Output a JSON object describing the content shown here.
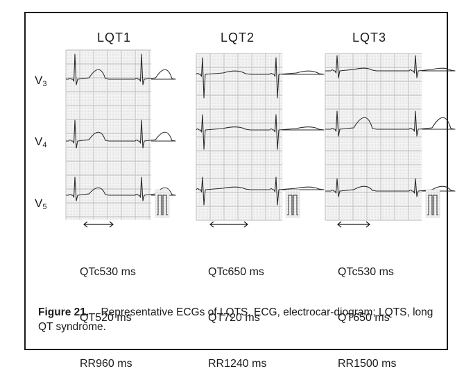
{
  "panels": [
    {
      "title": "LQT1",
      "measurements": [
        {
          "label": "QTc",
          "value": "530 ms"
        },
        {
          "label": "QT",
          "value": "520 ms"
        },
        {
          "label": "RR",
          "value": "960 ms"
        }
      ]
    },
    {
      "title": "LQT2",
      "measurements": [
        {
          "label": "QTc",
          "value": "650 ms"
        },
        {
          "label": "QT",
          "value": "720 ms"
        },
        {
          "label": "RR",
          "value": "1240 ms"
        }
      ]
    },
    {
      "title": "LQT3",
      "measurements": [
        {
          "label": "QTc",
          "value": "530 ms"
        },
        {
          "label": "QT",
          "value": "650 ms"
        },
        {
          "label": "RR",
          "value": "1500 ms"
        }
      ]
    }
  ],
  "leads": [
    {
      "letter": "V",
      "sub": "3"
    },
    {
      "letter": "V",
      "sub": "4"
    },
    {
      "letter": "V",
      "sub": "5"
    }
  ],
  "caption": {
    "figure_label": "Figure 21.",
    "text": "Representative ECGs of LQTS. ECG, electrocar-diogram; LQTS, long QT syndrome."
  },
  "colors": {
    "grid": "#b9b9b9",
    "trace": "#2a2a2a",
    "paper": "#f4f4f4"
  }
}
